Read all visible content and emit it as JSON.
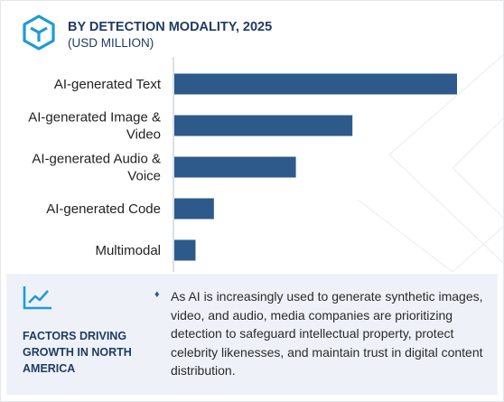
{
  "header": {
    "title": "BY DETECTION MODALITY, 2025",
    "subtitle": "(USD MILLION)"
  },
  "chart_data": {
    "type": "bar",
    "orientation": "horizontal",
    "categories": [
      "AI-generated Text",
      "AI-generated Image & Video",
      "AI-generated Audio & Voice",
      "AI-generated Code",
      "Multimodal"
    ],
    "values": [
      100,
      63,
      43,
      14,
      7.5
    ],
    "bar_color": "#2d5a8a",
    "axis_color": "#cfd5de",
    "xlim": [
      0,
      100
    ],
    "grid": false
  },
  "factors": {
    "title": "FACTORS DRIVING GROWTH IN NORTH AMERICA",
    "text": "As AI is increasingly used to generate synthetic images, video, and audio, media companies are prioritizing detection to safeguard intellectual property, protect celebrity likenesses, and maintain trust in digital content distribution.",
    "icon": "trend-up-icon",
    "bullet": "♦"
  },
  "logo": "cube-logo-icon",
  "colors": {
    "primary": "#1f3b63",
    "accent": "#1f9bd7",
    "panel_bg": "#eef2f8"
  }
}
